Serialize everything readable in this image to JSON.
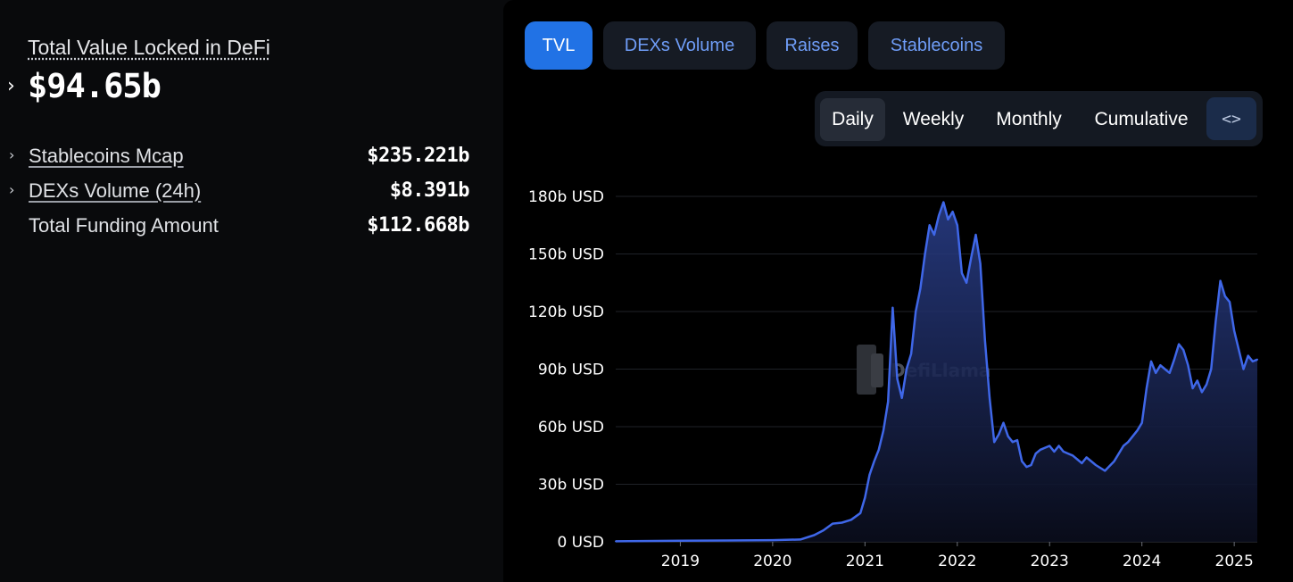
{
  "summary": {
    "tvl_title": "Total Value Locked in DeFi",
    "tvl_value": "$94.65b",
    "stats": [
      {
        "label": "Stablecoins Mcap",
        "value": "$235.221b",
        "expandable": true
      },
      {
        "label": "DEXs Volume (24h)",
        "value": "$8.391b",
        "expandable": true
      },
      {
        "label": "Total Funding Amount",
        "value": "$112.668b",
        "expandable": false
      }
    ]
  },
  "tabs": [
    {
      "label": "TVL",
      "active": true
    },
    {
      "label": "DEXs Volume",
      "active": false
    },
    {
      "label": "Raises",
      "active": false
    },
    {
      "label": "Stablecoins",
      "active": false
    }
  ],
  "periods": [
    {
      "label": "Daily",
      "active": true
    },
    {
      "label": "Weekly",
      "active": false
    },
    {
      "label": "Monthly",
      "active": false
    },
    {
      "label": "Cumulative",
      "active": false
    }
  ],
  "embed_icon": "code-brackets-icon",
  "watermark": "DefiLlama",
  "colors": {
    "line": "#3f67e8",
    "accent": "#2172e5",
    "tab_text": "#6f9df7"
  },
  "chart_data": {
    "type": "area",
    "title": "",
    "xlabel": "",
    "ylabel": "",
    "ylim": [
      0,
      180
    ],
    "xlim": [
      2018.3,
      2025.25
    ],
    "y_ticks": [
      "0 USD",
      "30b USD",
      "60b USD",
      "90b USD",
      "120b USD",
      "150b USD",
      "180b USD"
    ],
    "x_ticks": [
      "2019",
      "2020",
      "2021",
      "2022",
      "2023",
      "2024",
      "2025"
    ],
    "grid": true,
    "legend": "none",
    "series": [
      {
        "x": [
          2018.3,
          2019.0,
          2019.5,
          2020.0,
          2020.3,
          2020.45,
          2020.55,
          2020.65,
          2020.75,
          2020.85,
          2020.95,
          2021.0,
          2021.05,
          2021.1,
          2021.15,
          2021.2,
          2021.25,
          2021.3,
          2021.35,
          2021.4,
          2021.45,
          2021.5,
          2021.55,
          2021.6,
          2021.65,
          2021.7,
          2021.75,
          2021.8,
          2021.85,
          2021.9,
          2021.95,
          2022.0,
          2022.05,
          2022.1,
          2022.15,
          2022.2,
          2022.25,
          2022.3,
          2022.35,
          2022.4,
          2022.45,
          2022.5,
          2022.55,
          2022.6,
          2022.65,
          2022.7,
          2022.75,
          2022.8,
          2022.85,
          2022.9,
          2022.95,
          2023.0,
          2023.05,
          2023.1,
          2023.15,
          2023.2,
          2023.25,
          2023.3,
          2023.35,
          2023.4,
          2023.5,
          2023.6,
          2023.7,
          2023.8,
          2023.85,
          2023.9,
          2023.95,
          2024.0,
          2024.05,
          2024.1,
          2024.15,
          2024.2,
          2024.25,
          2024.3,
          2024.35,
          2024.4,
          2024.45,
          2024.5,
          2024.55,
          2024.6,
          2024.65,
          2024.7,
          2024.75,
          2024.8,
          2024.85,
          2024.9,
          2024.95,
          2025.0,
          2025.05,
          2025.1,
          2025.15,
          2025.2,
          2025.25
        ],
        "values": [
          0.3,
          0.6,
          0.7,
          0.9,
          1.2,
          3.5,
          6.0,
          9.5,
          10.0,
          11.5,
          15.0,
          23.0,
          35.0,
          42.0,
          48.0,
          58.0,
          73.0,
          122.0,
          85.0,
          75.0,
          90.0,
          98.0,
          120.0,
          132.0,
          150.0,
          165.0,
          160.0,
          170.0,
          177.0,
          168.0,
          172.0,
          165.0,
          140.0,
          135.0,
          148.0,
          160.0,
          145.0,
          105.0,
          75.0,
          52.0,
          56.0,
          62.0,
          55.0,
          52.0,
          53.0,
          42.0,
          39.0,
          40.0,
          46.0,
          48.0,
          49.0,
          50.0,
          47.0,
          50.0,
          47.0,
          46.0,
          45.0,
          43.0,
          41.0,
          44.0,
          40.0,
          37.0,
          42.0,
          50.0,
          52.0,
          55.0,
          58.0,
          62.0,
          80.0,
          94.0,
          88.0,
          92.0,
          90.0,
          88.0,
          95.0,
          103.0,
          100.0,
          92.0,
          80.0,
          84.0,
          78.0,
          82.0,
          90.0,
          115.0,
          136.0,
          128.0,
          125.0,
          110.0,
          100.0,
          90.0,
          97.0,
          94.0,
          95.0
        ]
      }
    ]
  }
}
